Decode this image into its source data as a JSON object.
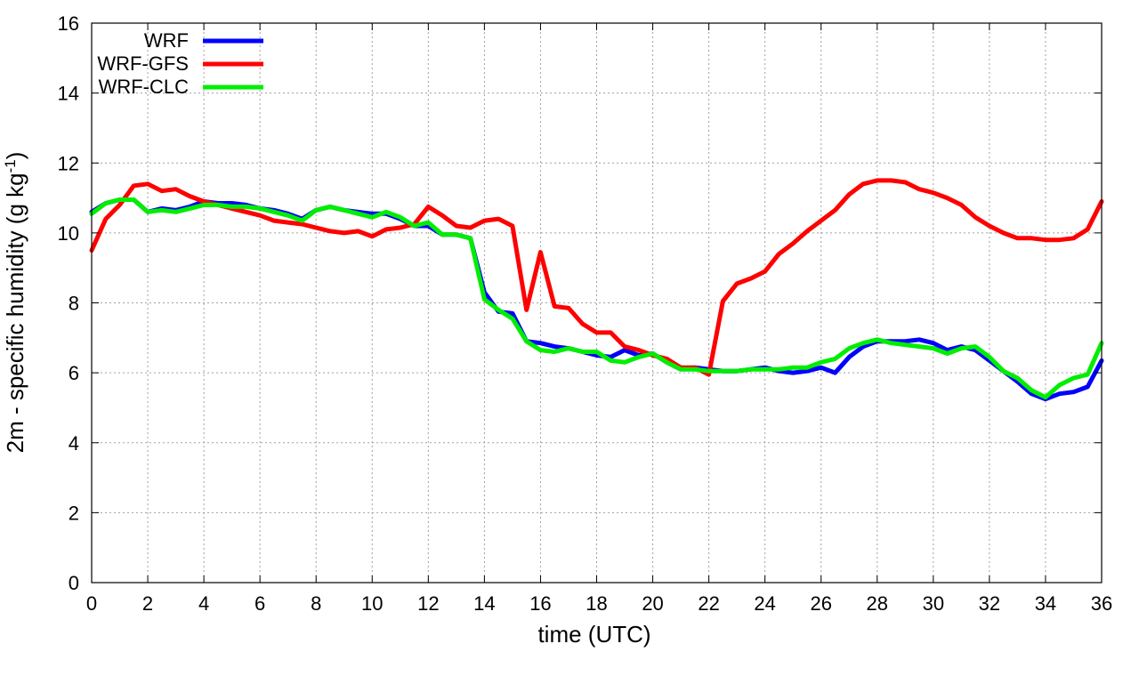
{
  "chart_data": {
    "type": "line",
    "xlabel": "time (UTC)",
    "ylabel": "2m - specific humidity (g kg",
    "ylabel_sup": "-1",
    "ylabel_close": ")",
    "xlim": [
      0,
      36
    ],
    "ylim": [
      0,
      16
    ],
    "xticks": [
      0,
      2,
      4,
      6,
      8,
      10,
      12,
      14,
      16,
      18,
      20,
      22,
      24,
      26,
      28,
      30,
      32,
      34,
      36
    ],
    "yticks": [
      0,
      2,
      4,
      6,
      8,
      10,
      12,
      14,
      16
    ],
    "grid": true,
    "legend_position": "top-left",
    "series": [
      {
        "name": "WRF",
        "color": "#0000ff",
        "x": [
          0,
          0.5,
          1,
          1.5,
          2,
          2.5,
          3,
          3.5,
          4,
          4.5,
          5,
          5.5,
          6,
          6.5,
          7,
          7.5,
          8,
          8.5,
          9,
          9.5,
          10,
          10.5,
          11,
          11.5,
          12,
          12.5,
          13,
          13.5,
          14,
          14.5,
          15,
          15.5,
          16,
          16.5,
          17,
          17.5,
          18,
          18.5,
          19,
          19.5,
          20,
          20.5,
          21,
          21.5,
          22,
          22.5,
          23,
          23.5,
          24,
          24.5,
          25,
          25.5,
          26,
          26.5,
          27,
          27.5,
          28,
          28.5,
          29,
          29.5,
          30,
          30.5,
          31,
          31.5,
          32,
          32.5,
          33,
          33.5,
          34,
          34.5,
          35,
          35.5,
          36
        ],
        "y": [
          10.6,
          10.85,
          10.95,
          10.95,
          10.6,
          10.7,
          10.65,
          10.75,
          10.9,
          10.85,
          10.85,
          10.8,
          10.7,
          10.65,
          10.55,
          10.4,
          10.65,
          10.75,
          10.65,
          10.6,
          10.55,
          10.55,
          10.4,
          10.2,
          10.2,
          9.95,
          9.95,
          9.85,
          8.3,
          7.75,
          7.7,
          6.9,
          6.85,
          6.75,
          6.7,
          6.6,
          6.5,
          6.45,
          6.65,
          6.5,
          6.55,
          6.3,
          6.1,
          6.15,
          6.1,
          6.05,
          6.05,
          6.1,
          6.15,
          6.05,
          6.0,
          6.05,
          6.15,
          6.0,
          6.45,
          6.75,
          6.9,
          6.9,
          6.9,
          6.95,
          6.85,
          6.65,
          6.75,
          6.65,
          6.35,
          6.05,
          5.75,
          5.4,
          5.25,
          5.4,
          5.45,
          5.6,
          6.35
        ]
      },
      {
        "name": "WRF-GFS",
        "color": "#ff0000",
        "x": [
          0,
          0.5,
          1,
          1.5,
          2,
          2.5,
          3,
          3.5,
          4,
          4.5,
          5,
          5.5,
          6,
          6.5,
          7,
          7.5,
          8,
          8.5,
          9,
          9.5,
          10,
          10.5,
          11,
          11.5,
          12,
          12.5,
          13,
          13.5,
          14,
          14.5,
          15,
          15.5,
          16,
          16.5,
          17,
          17.5,
          18,
          18.5,
          19,
          19.5,
          20,
          20.5,
          21,
          21.5,
          22,
          22.5,
          23,
          23.5,
          24,
          24.5,
          25,
          25.5,
          26,
          26.5,
          27,
          27.5,
          28,
          28.5,
          29,
          29.5,
          30,
          30.5,
          31,
          31.5,
          32,
          32.5,
          33,
          33.5,
          34,
          34.5,
          35,
          35.5,
          36
        ],
        "y": [
          9.5,
          10.4,
          10.8,
          11.35,
          11.4,
          11.2,
          11.25,
          11.05,
          10.9,
          10.8,
          10.7,
          10.6,
          10.5,
          10.35,
          10.3,
          10.25,
          10.15,
          10.05,
          10.0,
          10.05,
          9.9,
          10.1,
          10.15,
          10.25,
          10.75,
          10.5,
          10.2,
          10.15,
          10.35,
          10.4,
          10.2,
          7.8,
          9.45,
          7.9,
          7.85,
          7.4,
          7.15,
          7.15,
          6.75,
          6.65,
          6.5,
          6.4,
          6.15,
          6.15,
          5.95,
          8.05,
          8.55,
          8.7,
          8.9,
          9.4,
          9.7,
          10.05,
          10.35,
          10.65,
          11.1,
          11.4,
          11.5,
          11.5,
          11.45,
          11.25,
          11.15,
          11.0,
          10.8,
          10.45,
          10.2,
          10.0,
          9.85,
          9.85,
          9.8,
          9.8,
          9.85,
          10.1,
          10.9
        ]
      },
      {
        "name": "WRF-CLC",
        "color": "#00ee00",
        "x": [
          0,
          0.5,
          1,
          1.5,
          2,
          2.5,
          3,
          3.5,
          4,
          4.5,
          5,
          5.5,
          6,
          6.5,
          7,
          7.5,
          8,
          8.5,
          9,
          9.5,
          10,
          10.5,
          11,
          11.5,
          12,
          12.5,
          13,
          13.5,
          14,
          14.5,
          15,
          15.5,
          16,
          16.5,
          17,
          17.5,
          18,
          18.5,
          19,
          19.5,
          20,
          20.5,
          21,
          21.5,
          22,
          22.5,
          23,
          23.5,
          24,
          24.5,
          25,
          25.5,
          26,
          26.5,
          27,
          27.5,
          28,
          28.5,
          29,
          29.5,
          30,
          30.5,
          31,
          31.5,
          32,
          32.5,
          33,
          33.5,
          34,
          34.5,
          35,
          35.5,
          36
        ],
        "y": [
          10.55,
          10.85,
          10.95,
          10.95,
          10.6,
          10.65,
          10.6,
          10.7,
          10.8,
          10.8,
          10.75,
          10.75,
          10.7,
          10.6,
          10.5,
          10.35,
          10.65,
          10.75,
          10.65,
          10.55,
          10.45,
          10.6,
          10.45,
          10.2,
          10.3,
          9.95,
          9.95,
          9.85,
          8.1,
          7.8,
          7.55,
          6.9,
          6.65,
          6.6,
          6.7,
          6.6,
          6.6,
          6.35,
          6.3,
          6.45,
          6.55,
          6.3,
          6.1,
          6.1,
          6.05,
          6.05,
          6.05,
          6.1,
          6.1,
          6.1,
          6.15,
          6.15,
          6.3,
          6.4,
          6.7,
          6.85,
          6.95,
          6.85,
          6.8,
          6.75,
          6.7,
          6.55,
          6.7,
          6.75,
          6.45,
          6.05,
          5.85,
          5.5,
          5.3,
          5.65,
          5.85,
          5.95,
          6.85
        ]
      }
    ]
  }
}
